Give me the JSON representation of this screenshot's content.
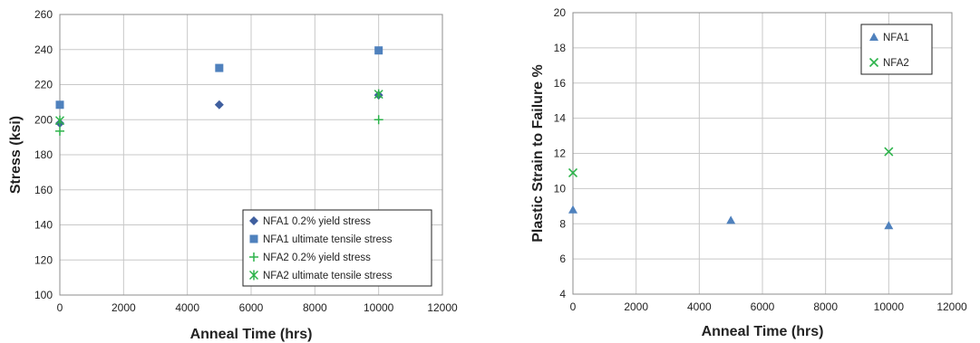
{
  "colors": {
    "blue": "#4f81bd",
    "darkblue": "#3f5f9f",
    "green": "#2cb34a"
  },
  "chart_data": [
    {
      "type": "scatter",
      "xlabel": "Anneal Time (hrs)",
      "ylabel": "Stress (ksi)",
      "xlim": [
        0,
        12000
      ],
      "ylim": [
        100,
        260
      ],
      "xticks": [
        "0",
        "2000",
        "4000",
        "6000",
        "8000",
        "10000",
        "12000"
      ],
      "yticks": [
        "100",
        "120",
        "140",
        "160",
        "180",
        "200",
        "220",
        "240",
        "260"
      ],
      "grid": true,
      "legend_position": "bottom-right",
      "series": [
        {
          "name": "NFA1 0.2% yield stress",
          "marker": "diamond",
          "color": "#3f5f9f",
          "points": [
            [
              0,
              198
            ],
            [
              5000,
              208.5
            ],
            [
              10000,
              214
            ]
          ]
        },
        {
          "name": "NFA1 ultimate tensile stress",
          "marker": "square",
          "color": "#4f81bd",
          "points": [
            [
              0,
              208.5
            ],
            [
              5000,
              229.5
            ],
            [
              10000,
              239.5
            ]
          ]
        },
        {
          "name": "NFA2 0.2% yield stress",
          "marker": "plus",
          "color": "#2cb34a",
          "points": [
            [
              0,
              193.5
            ],
            [
              10000,
              200
            ]
          ]
        },
        {
          "name": "NFA2 ultimate tensile stress",
          "marker": "star",
          "color": "#2cb34a",
          "points": [
            [
              0,
              199.5
            ],
            [
              10000,
              214.5
            ]
          ]
        }
      ]
    },
    {
      "type": "scatter",
      "xlabel": "Anneal Time (hrs)",
      "ylabel": "Plastic Strain to Failure %",
      "xlim": [
        0,
        12000
      ],
      "ylim": [
        4,
        20
      ],
      "xticks": [
        "0",
        "2000",
        "4000",
        "6000",
        "8000",
        "10000",
        "12000"
      ],
      "yticks": [
        "4",
        "6",
        "8",
        "10",
        "12",
        "14",
        "16",
        "18",
        "20"
      ],
      "grid": true,
      "legend_position": "top-right",
      "series": [
        {
          "name": "NFA1",
          "marker": "triangle",
          "color": "#4f81bd",
          "points": [
            [
              0,
              8.8
            ],
            [
              5000,
              8.2
            ],
            [
              10000,
              7.9
            ]
          ]
        },
        {
          "name": "NFA2",
          "marker": "x",
          "color": "#2cb34a",
          "points": [
            [
              0,
              10.9
            ],
            [
              10000,
              12.1
            ]
          ]
        }
      ]
    }
  ]
}
